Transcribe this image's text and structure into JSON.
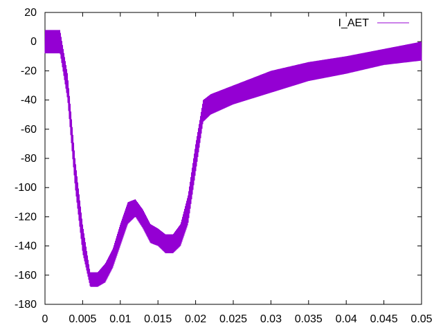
{
  "chart_data": {
    "type": "line",
    "title": "",
    "xlabel": "",
    "ylabel": "",
    "xlim": [
      0,
      0.05
    ],
    "ylim": [
      -180,
      20
    ],
    "x_ticks": [
      0,
      0.005,
      0.01,
      0.015,
      0.02,
      0.025,
      0.03,
      0.035,
      0.04,
      0.045,
      0.05
    ],
    "x_tick_labels": [
      "0",
      "0.005",
      "0.01",
      "0.015",
      "0.02",
      "0.025",
      "0.03",
      "0.035",
      "0.04",
      "0.045",
      "0.05"
    ],
    "y_ticks": [
      20,
      0,
      -20,
      -40,
      -60,
      -80,
      -100,
      -120,
      -140,
      -160,
      -180
    ],
    "y_tick_labels": [
      "20",
      "0",
      "-20",
      "-40",
      "-60",
      "-80",
      "-100",
      "-120",
      "-140",
      "-160",
      "-180"
    ],
    "grid": false,
    "legend_position": "top-right",
    "series": [
      {
        "name": "I_AET",
        "color": "#9400d3",
        "envelope_x": [
          0,
          0.002,
          0.003,
          0.004,
          0.005,
          0.006,
          0.007,
          0.008,
          0.009,
          0.01,
          0.011,
          0.012,
          0.013,
          0.014,
          0.015,
          0.016,
          0.017,
          0.018,
          0.019,
          0.02,
          0.021,
          0.022,
          0.025,
          0.03,
          0.035,
          0.04,
          0.045,
          0.05
        ],
        "envelope_low": [
          -8,
          -8,
          -40,
          -100,
          -145,
          -168,
          -168,
          -165,
          -155,
          -140,
          -125,
          -120,
          -128,
          -138,
          -140,
          -145,
          -145,
          -140,
          -125,
          -90,
          -55,
          -50,
          -43,
          -35,
          -27,
          -22,
          -16,
          -13
        ],
        "envelope_high": [
          8,
          8,
          -22,
          -80,
          -125,
          -158,
          -158,
          -152,
          -142,
          -125,
          -110,
          -108,
          -115,
          -125,
          -128,
          -132,
          -132,
          -125,
          -105,
          -70,
          -40,
          -36,
          -30,
          -20,
          -14,
          -10,
          -5,
          0
        ]
      }
    ]
  }
}
